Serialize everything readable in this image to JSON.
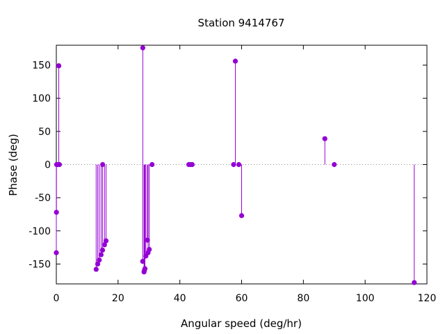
{
  "chart_data": {
    "type": "scatter",
    "subtype": "impulses",
    "title": "Station 9414767",
    "xlabel": "Angular speed (deg/hr)",
    "ylabel": "Phase (deg)",
    "xlim": [
      0,
      120
    ],
    "ylim": [
      -180,
      180
    ],
    "xticks": [
      0,
      20,
      40,
      60,
      80,
      100,
      120
    ],
    "yticks": [
      -150,
      -100,
      -50,
      0,
      50,
      100,
      150
    ],
    "grid": false,
    "zero_line": true,
    "color": "#9400d3",
    "points": [
      {
        "x": 0.0,
        "y": -133
      },
      {
        "x": 0.04,
        "y": -72
      },
      {
        "x": 0.08,
        "y": 0
      },
      {
        "x": 0.5,
        "y": 0
      },
      {
        "x": 0.8,
        "y": 149
      },
      {
        "x": 1.0,
        "y": 0
      },
      {
        "x": 12.9,
        "y": -158
      },
      {
        "x": 13.4,
        "y": -150
      },
      {
        "x": 13.9,
        "y": -144
      },
      {
        "x": 14.5,
        "y": -136
      },
      {
        "x": 14.96,
        "y": -129
      },
      {
        "x": 15.0,
        "y": 0
      },
      {
        "x": 15.6,
        "y": -121
      },
      {
        "x": 16.1,
        "y": -115
      },
      {
        "x": 27.97,
        "y": -146
      },
      {
        "x": 28.0,
        "y": 176
      },
      {
        "x": 28.4,
        "y": -162
      },
      {
        "x": 28.5,
        "y": -160
      },
      {
        "x": 28.7,
        "y": -157
      },
      {
        "x": 29.0,
        "y": -138
      },
      {
        "x": 29.5,
        "y": -114
      },
      {
        "x": 29.7,
        "y": -133
      },
      {
        "x": 30.1,
        "y": -128
      },
      {
        "x": 31.0,
        "y": 0
      },
      {
        "x": 42.9,
        "y": 0
      },
      {
        "x": 43.5,
        "y": 0
      },
      {
        "x": 44.0,
        "y": 0
      },
      {
        "x": 57.4,
        "y": 0
      },
      {
        "x": 57.97,
        "y": 156
      },
      {
        "x": 59.1,
        "y": 0
      },
      {
        "x": 60.0,
        "y": -77
      },
      {
        "x": 86.95,
        "y": 39
      },
      {
        "x": 90.0,
        "y": 0
      },
      {
        "x": 115.9,
        "y": -178
      }
    ]
  }
}
